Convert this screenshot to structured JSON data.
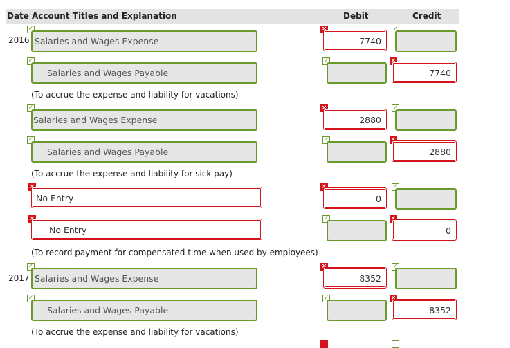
{
  "header": {
    "date": "Date",
    "account": "Account Titles and Explanation",
    "debit": "Debit",
    "credit": "Credit"
  },
  "colors": {
    "correct": "#6a9a2c",
    "incorrect": "#d4141b"
  },
  "entries": [
    {
      "year": "2016",
      "rows": [
        {
          "account": "Salaries and Wages Expense",
          "account_status": "ok",
          "debit": "7740",
          "debit_status": "bad",
          "credit": "",
          "credit_status": "ok"
        },
        {
          "account": "Salaries and Wages Payable",
          "account_status": "ok",
          "debit": "",
          "debit_status": "ok",
          "credit": "7740",
          "credit_status": "bad"
        }
      ],
      "note": "(To accrue the expense and liability for vacations)"
    },
    {
      "year": "",
      "rows": [
        {
          "account": "Salaries and Wages Expense",
          "account_status": "ok",
          "debit": "2880",
          "debit_status": "bad",
          "credit": "",
          "credit_status": "ok"
        },
        {
          "account": "Salaries and Wages Payable",
          "account_status": "ok",
          "debit": "",
          "debit_status": "ok",
          "credit": "2880",
          "credit_status": "bad"
        }
      ],
      "note": "(To accrue the expense and liability for sick pay)"
    },
    {
      "year": "",
      "rows": [
        {
          "account": "No Entry",
          "account_status": "bad",
          "debit": "0",
          "debit_status": "bad",
          "credit": "",
          "credit_status": "ok"
        },
        {
          "account": "No Entry",
          "account_status": "bad",
          "debit": "",
          "debit_status": "ok",
          "credit": "0",
          "credit_status": "bad"
        }
      ],
      "note": "(To record payment for compensated time when used by employees)"
    },
    {
      "year": "2017",
      "rows": [
        {
          "account": "Salaries and Wages Expense",
          "account_status": "ok",
          "debit": "8352",
          "debit_status": "bad",
          "credit": "",
          "credit_status": "ok"
        },
        {
          "account": "Salaries and Wages Payable",
          "account_status": "ok",
          "debit": "",
          "debit_status": "ok",
          "credit": "8352",
          "credit_status": "bad"
        }
      ],
      "note": "(To accrue the expense and liability for vacations)"
    }
  ]
}
